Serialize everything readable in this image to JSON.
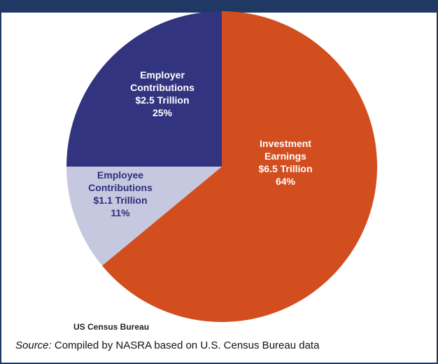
{
  "chart_data": {
    "type": "pie",
    "title": "",
    "slices": [
      {
        "name": "Investment Earnings",
        "label_lines": [
          "Investment",
          "Earnings",
          "$6.5 Trillion",
          "64%"
        ],
        "value": 6.5,
        "percent": 64,
        "color": "#d24e1e",
        "label_color": "#ffffff"
      },
      {
        "name": "Employee Contributions",
        "label_lines": [
          "Employee",
          "Contributions",
          "$1.1 Trillion",
          "11%"
        ],
        "value": 1.1,
        "percent": 11,
        "color": "#c6c8e0",
        "label_color": "#2b2f7a"
      },
      {
        "name": "Employer Contributions",
        "label_lines": [
          "Employer",
          "Contributions",
          "$2.5 Trillion",
          "25%"
        ],
        "value": 2.5,
        "percent": 25,
        "color": "#33347f",
        "label_color": "#ffffff"
      }
    ],
    "start_angle_deg": 0,
    "direction": "clockwise"
  },
  "footer": {
    "org_label": "US Census Bureau",
    "source_prefix": "Source:",
    "source_text": " Compiled by NASRA based on U.S. Census Bureau data"
  }
}
